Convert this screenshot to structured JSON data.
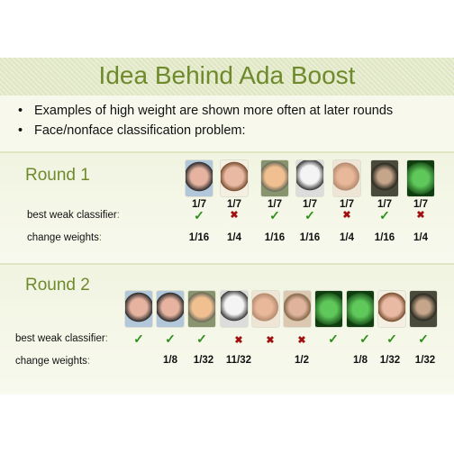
{
  "title": "Idea Behind Ada Boost",
  "bullets": [
    "Examples of high weight are shown more often at later rounds",
    "Face/nonface classification problem:"
  ],
  "round1": {
    "label": "Round 1",
    "fractions": [
      "1/7",
      "1/7",
      "1/7",
      "1/7",
      "1/7",
      "1/7",
      "1/7"
    ],
    "classifier_label": "best weak classifier",
    "classifier_colon": ":",
    "results": [
      "check",
      "cross",
      "check",
      "check",
      "cross",
      "check",
      "cross"
    ],
    "weights_label": "change weights",
    "weights_colon": ":",
    "weights": [
      "1/16",
      "1/4",
      "1/16",
      "1/16",
      "1/4",
      "1/16",
      "1/4"
    ]
  },
  "round2": {
    "label": "Round 2",
    "classifier_label": "best weak classifier",
    "classifier_colon": ":",
    "results": [
      "check",
      "check",
      "check",
      "cross",
      "cross",
      "cross",
      "check",
      "check",
      "check",
      "check"
    ],
    "weights_label": "change weights",
    "weights_colon": ":",
    "weights": [
      "",
      "1/8",
      "1/32",
      "11/32",
      "",
      "1/2",
      "",
      "1/8",
      "1/32",
      "1/32"
    ]
  },
  "icons": {
    "check": "✓",
    "cross": "✖"
  }
}
